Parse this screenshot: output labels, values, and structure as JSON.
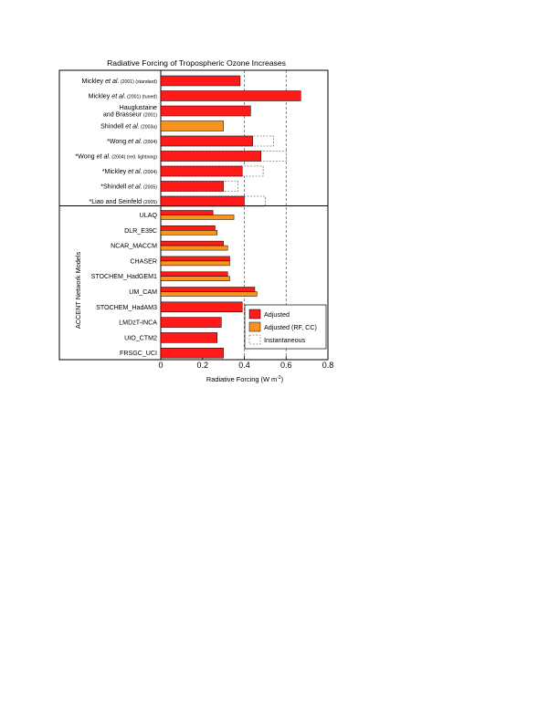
{
  "chart_data": {
    "type": "bar",
    "orientation": "horizontal",
    "title": "Radiative Forcing of Tropospheric Ozone Increases",
    "xlabel": "Radiative Forcing  (W m",
    "xlabel_sup": "-2",
    "xlabel_close": ")",
    "ylabel_group": "ACCENT Network Models",
    "xlim": [
      0,
      0.8
    ],
    "x_ticks": [
      "0",
      "0.2",
      "0.4",
      "0.6",
      "0.8"
    ],
    "grid": "dashed vertical lines at 0.4 and 0.6",
    "legend_position": "bottom-right",
    "colors": {
      "adjusted": "#ff1a1a",
      "adjusted_rf_cc": "#f7941d",
      "instantaneous": "#ffffff"
    },
    "legend": [
      {
        "key": "adjusted",
        "label": "Adjusted"
      },
      {
        "key": "adjusted_rf_cc",
        "label": "Adjusted (RF, CC)"
      },
      {
        "key": "instantaneous",
        "label": "Instantaneous"
      }
    ],
    "studies": [
      {
        "parts": [
          [
            "Mickley ",
            ""
          ],
          [
            "et al.",
            "i"
          ],
          [
            " (2001) (standard)",
            "s"
          ]
        ],
        "adjusted": 0.38
      },
      {
        "parts": [
          [
            "Mickley ",
            ""
          ],
          [
            "et al.",
            "i"
          ],
          [
            " (2001) (tuned)",
            "s"
          ]
        ],
        "adjusted": 0.67
      },
      {
        "parts": [
          [
            "Hauglustaine",
            ""
          ]
        ],
        "parts2": [
          [
            "and Brasseur ",
            ""
          ],
          [
            "(2001)",
            "s"
          ]
        ],
        "adjusted": 0.43
      },
      {
        "parts": [
          [
            "Shindell ",
            ""
          ],
          [
            "et al.",
            "i"
          ],
          [
            " (2003a)",
            "s"
          ]
        ],
        "adjusted_rf_cc": 0.3
      },
      {
        "parts": [
          [
            "*Wong ",
            ""
          ],
          [
            "et al.",
            "i"
          ],
          [
            " (2004)",
            "s"
          ]
        ],
        "adjusted": 0.44,
        "instantaneous": 0.54
      },
      {
        "parts": [
          [
            "*Wong ",
            ""
          ],
          [
            "et al.",
            "i"
          ],
          [
            " (2004) (red. lightning)",
            "s"
          ]
        ],
        "adjusted": 0.48,
        "instantaneous": 0.6
      },
      {
        "parts": [
          [
            "*Mickley ",
            ""
          ],
          [
            "et al.",
            "i"
          ],
          [
            " (2004)",
            "s"
          ]
        ],
        "adjusted": 0.39,
        "instantaneous": 0.49
      },
      {
        "parts": [
          [
            "*Shindell ",
            ""
          ],
          [
            "et al.",
            "i"
          ],
          [
            " (2005)",
            "s"
          ]
        ],
        "adjusted": 0.3,
        "instantaneous": 0.37
      },
      {
        "parts": [
          [
            "*Liao and Seinfeld ",
            ""
          ],
          [
            "(2005)",
            "s"
          ]
        ],
        "adjusted": 0.4,
        "instantaneous": 0.5
      }
    ],
    "models": [
      {
        "name": "ULAQ",
        "adjusted": 0.25,
        "adjusted_rf_cc": 0.35
      },
      {
        "name": "DLR_E39C",
        "adjusted": 0.26,
        "adjusted_rf_cc": 0.27
      },
      {
        "name": "NCAR_MACCM",
        "adjusted": 0.3,
        "adjusted_rf_cc": 0.32
      },
      {
        "name": "CHASER",
        "adjusted": 0.33,
        "adjusted_rf_cc": 0.33
      },
      {
        "name": "STOCHEM_HadGEM1",
        "adjusted": 0.32,
        "adjusted_rf_cc": 0.33
      },
      {
        "name": "UM_CAM",
        "adjusted": 0.45,
        "adjusted_rf_cc": 0.46
      },
      {
        "name": "STOCHEM_HadAM3",
        "adjusted": 0.39
      },
      {
        "name": "LMDzT-INCA",
        "adjusted": 0.29
      },
      {
        "name": "UIO_CTM2",
        "adjusted": 0.27
      },
      {
        "name": "FRSGC_UCI",
        "adjusted": 0.3
      }
    ]
  }
}
